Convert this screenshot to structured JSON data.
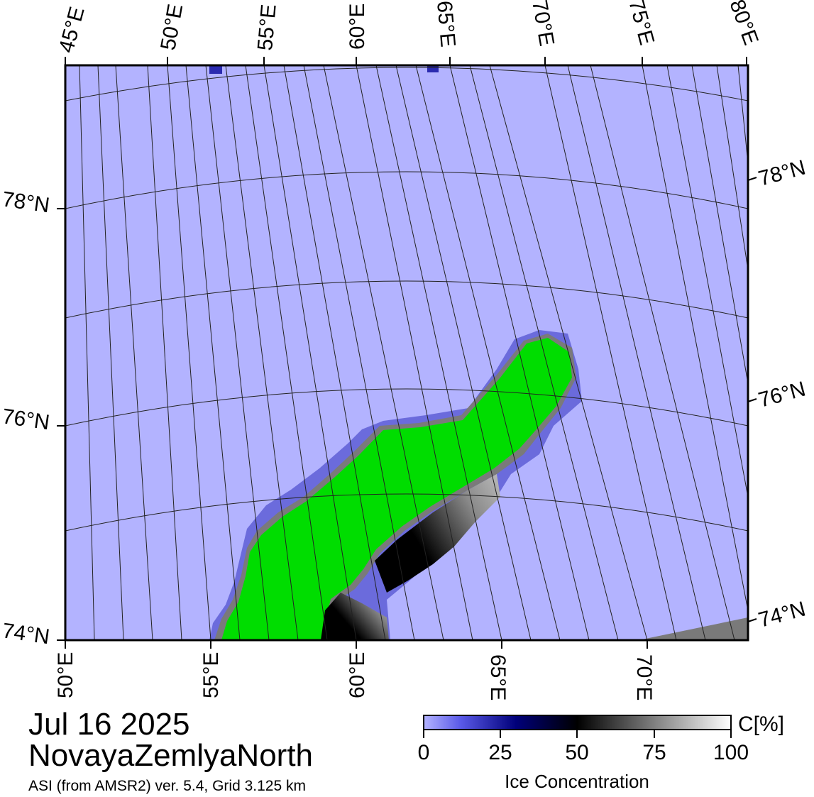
{
  "map": {
    "top_lon_labels": [
      "45°E",
      "50°E",
      "55°E",
      "60°E",
      "65°E",
      "70°E",
      "75°E",
      "80°E"
    ],
    "bottom_lon_labels": [
      "50°E",
      "55°E",
      "60°E",
      "65°E",
      "70°E"
    ],
    "left_lat_labels": [
      "78°N",
      "76°N",
      "74°N"
    ],
    "right_lat_labels": [
      "78°N",
      "76°N",
      "74°N"
    ],
    "colors": {
      "open_water": "#b3b3ff",
      "land": "#00dd00",
      "coast": "#7a7a7a",
      "graticule": "#222222",
      "frame": "#000000"
    }
  },
  "info": {
    "date": "Jul 16 2025",
    "region": "NovayaZemlyaNorth",
    "product": "ASI (from AMSR2) ver. 5.4,  Grid 3.125 km"
  },
  "colorbar": {
    "ticks": [
      "0",
      "25",
      "50",
      "75",
      "100"
    ],
    "unit": "C[%]",
    "title": "Ice Concentration",
    "stops": [
      "#b3b3ff",
      "#5050e8",
      "#00007a",
      "#000000",
      "#ffffff"
    ]
  }
}
